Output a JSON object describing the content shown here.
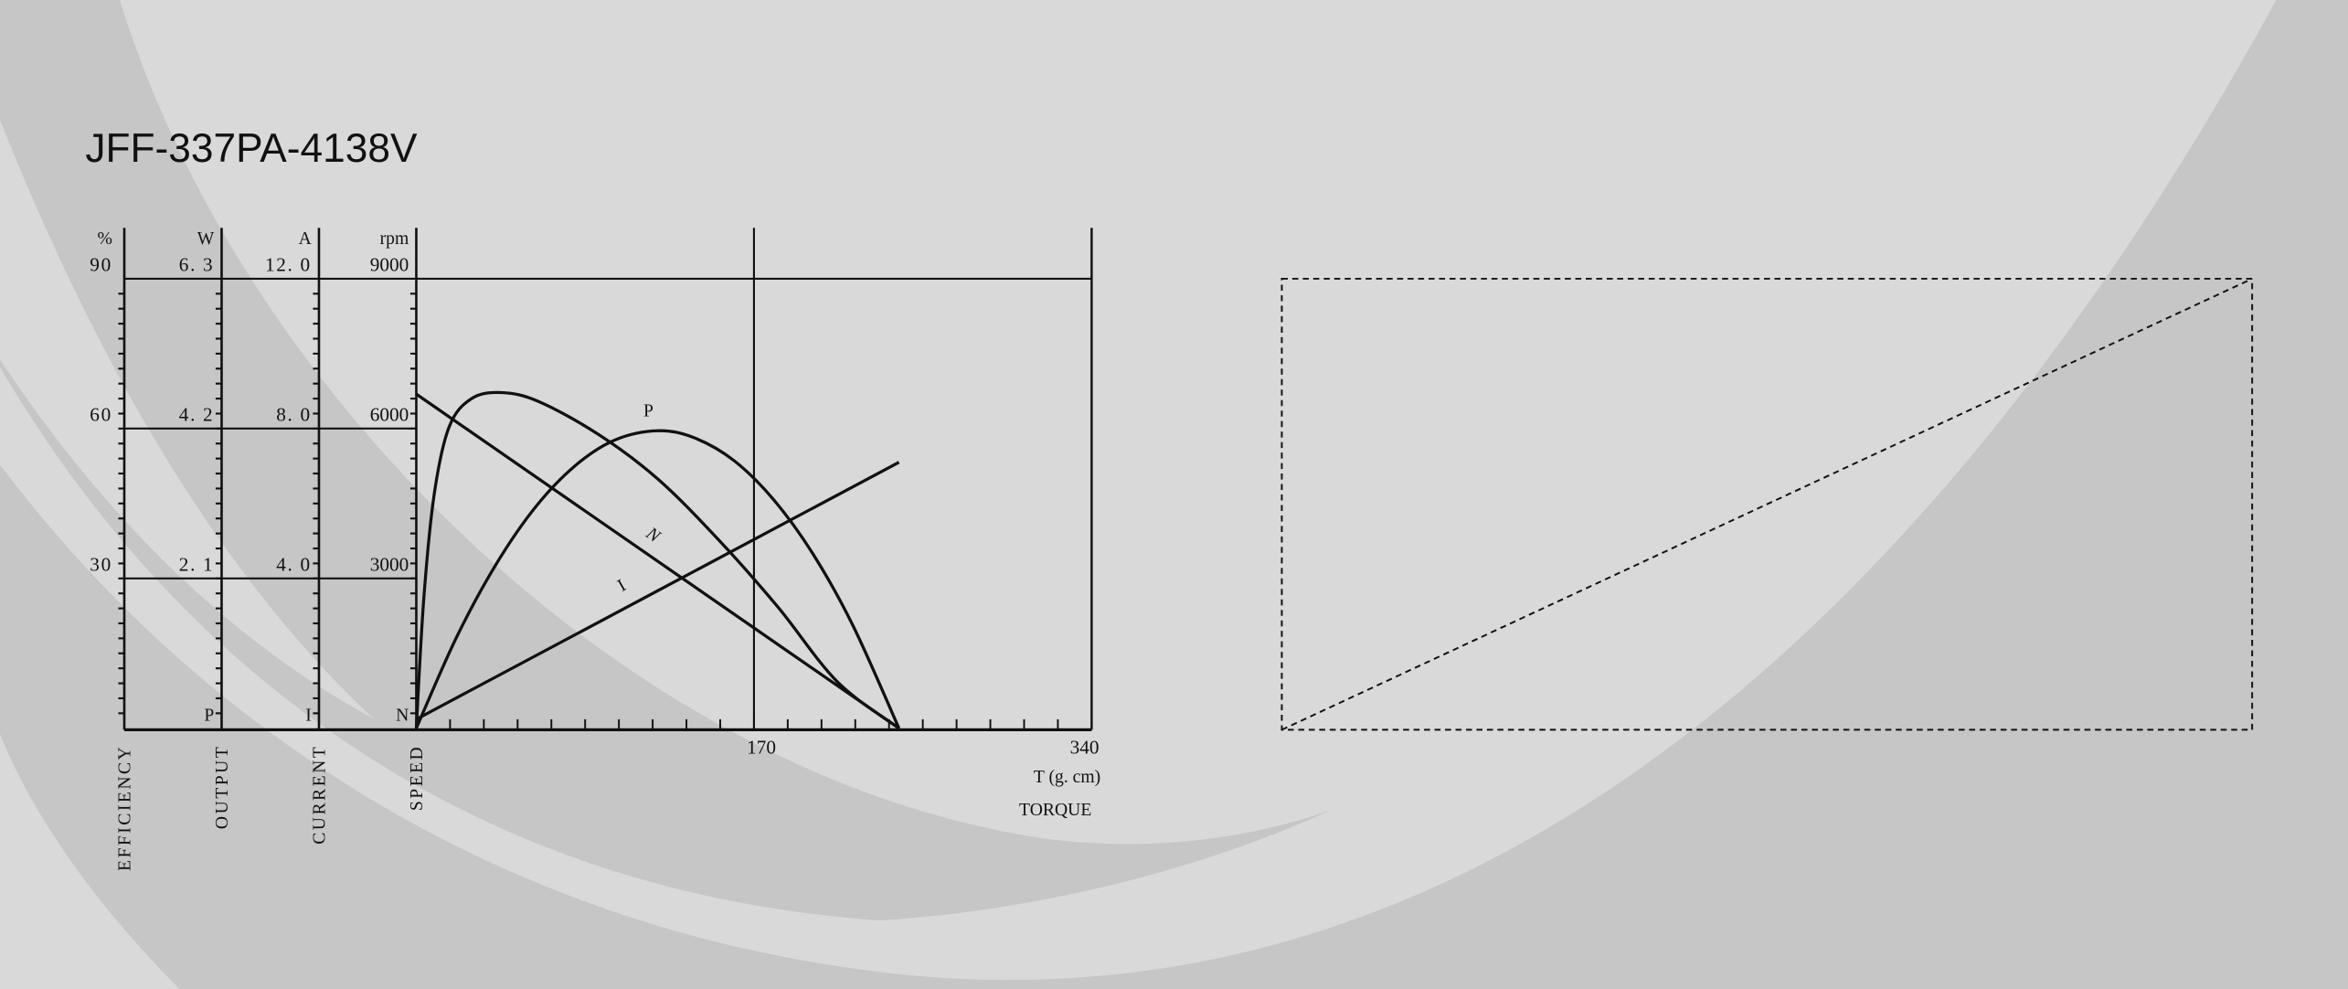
{
  "title": "JFF-337PA-4138V",
  "colors": {
    "background": "#d9d9d9",
    "swoosh": "#c6c6c6",
    "ink": "#111111"
  },
  "chart_data": {
    "type": "line",
    "x": {
      "label": "TORQUE",
      "unit": "T (g. cm)",
      "range": [
        0,
        340
      ],
      "ticks": [
        170,
        340
      ],
      "minor_step": 17
    },
    "y_axes": [
      {
        "key": "efficiency",
        "label": "EFFICIENCY",
        "unit": "%",
        "range": [
          0,
          90
        ],
        "ticks": [
          "90",
          "60",
          "30"
        ],
        "curve_letter": ""
      },
      {
        "key": "output",
        "label": "OUTPUT",
        "unit": "W",
        "range": [
          0,
          6.3
        ],
        "ticks": [
          "6. 3",
          "4. 2",
          "2. 1"
        ],
        "curve_letter": "P"
      },
      {
        "key": "current",
        "label": "CURRENT",
        "unit": "A",
        "range": [
          0,
          12.0
        ],
        "ticks": [
          "12. 0",
          "8. 0",
          "4. 0"
        ],
        "curve_letter": "I"
      },
      {
        "key": "speed",
        "label": "SPEED",
        "unit": "rpm",
        "range": [
          0,
          9000
        ],
        "ticks": [
          "9000",
          "6000",
          "3000"
        ],
        "curve_letter": "N"
      }
    ],
    "grid": {
      "horizontal": [
        9000,
        6000,
        3000
      ],
      "vertical": [
        170
      ]
    },
    "series": [
      {
        "axis": "efficiency",
        "label": "",
        "points": [
          [
            0,
            0
          ],
          [
            3.8,
            26.1
          ],
          [
            9,
            46.8
          ],
          [
            16.5,
            60.3
          ],
          [
            27.8,
            66
          ],
          [
            42.9,
            67.2
          ],
          [
            61.7,
            65.4
          ],
          [
            91.8,
            58.8
          ],
          [
            121.9,
            49.8
          ],
          [
            152,
            37.8
          ],
          [
            182,
            24.3
          ],
          [
            212,
            9.3
          ],
          [
            243,
            0
          ]
        ]
      },
      {
        "axis": "output",
        "label": "P",
        "points": [
          [
            0,
            0
          ],
          [
            20,
            1.26
          ],
          [
            40,
            2.29
          ],
          [
            60,
            3.1
          ],
          [
            80,
            3.68
          ],
          [
            100,
            4.04
          ],
          [
            121.5,
            4.17
          ],
          [
            140,
            4.07
          ],
          [
            160,
            3.75
          ],
          [
            180,
            3.2
          ],
          [
            200,
            2.43
          ],
          [
            220,
            1.43
          ],
          [
            243,
            0
          ]
        ]
      },
      {
        "axis": "speed",
        "label": "N",
        "points": [
          [
            0,
            6690
          ],
          [
            243,
            0
          ]
        ]
      },
      {
        "axis": "current",
        "label": "I",
        "points": [
          [
            0,
            0.24
          ],
          [
            243,
            7.1
          ]
        ]
      }
    ]
  },
  "right_panel": {
    "style": "dashed placeholder box with diagonal"
  }
}
